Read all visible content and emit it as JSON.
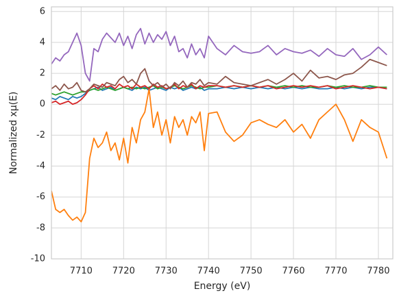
{
  "chart_data": {
    "type": "line",
    "xlabel": "Energy (eV)",
    "ylabel": "Normalized xμ(E)",
    "x": [
      7703,
      7704,
      7705,
      7706,
      7707,
      7708,
      7709,
      7710,
      7711,
      7712,
      7713,
      7714,
      7715,
      7716,
      7717,
      7718,
      7719,
      7720,
      7721,
      7722,
      7723,
      7724,
      7725,
      7726,
      7727,
      7728,
      7729,
      7730,
      7731,
      7732,
      7733,
      7734,
      7735,
      7736,
      7737,
      7738,
      7739,
      7740,
      7742,
      7744,
      7746,
      7748,
      7750,
      7752,
      7754,
      7756,
      7758,
      7760,
      7762,
      7764,
      7766,
      7768,
      7770,
      7772,
      7774,
      7776,
      7778,
      7780,
      7782
    ],
    "series": [
      {
        "color": "#1f77b4",
        "values": [
          0.4,
          0.3,
          0.5,
          0.4,
          0.3,
          0.5,
          0.4,
          0.5,
          0.7,
          0.9,
          1.0,
          1.1,
          0.9,
          1.0,
          1.1,
          0.9,
          1.0,
          1.1,
          1.0,
          0.9,
          1.1,
          1.0,
          1.1,
          0.9,
          1.0,
          1.1,
          1.0,
          0.9,
          1.1,
          1.0,
          1.1,
          0.9,
          1.0,
          1.1,
          1.0,
          1.1,
          0.9,
          1.0,
          1.0,
          1.1,
          1.0,
          1.1,
          1.0,
          1.1,
          1.0,
          1.1,
          1.0,
          1.1,
          1.0,
          1.1,
          1.0,
          1.0,
          1.1,
          1.0,
          1.1,
          1.0,
          1.1,
          1.1,
          1.0
        ]
      },
      {
        "color": "#ff7f0e",
        "values": [
          -5.6,
          -6.8,
          -7,
          -6.8,
          -7.2,
          -7.5,
          -7.3,
          -7.6,
          -7,
          -3.5,
          -2.2,
          -2.8,
          -2.5,
          -1.8,
          -3,
          -2.5,
          -3.6,
          -2.2,
          -3.8,
          -1.5,
          -2.5,
          -1,
          -0.5,
          1.0,
          -1.5,
          -0.5,
          -2,
          -1,
          -2.5,
          -0.8,
          -1.5,
          -1,
          -2,
          -0.8,
          -1.2,
          -0.5,
          -3,
          -0.6,
          -0.5,
          -1.8,
          -2.4,
          -2,
          -1.2,
          -1,
          -1.3,
          -1.5,
          -1,
          -1.8,
          -1.3,
          -2.2,
          -1,
          -0.5,
          0,
          -1,
          -2.4,
          -1,
          -1.5,
          -1.8,
          -3.5
        ]
      },
      {
        "color": "#2ca02c",
        "values": [
          0.7,
          0.6,
          0.7,
          0.8,
          0.7,
          0.6,
          0.7,
          0.8,
          0.8,
          0.9,
          1.0,
          0.9,
          1.0,
          1.1,
          1.0,
          0.9,
          1.0,
          1.1,
          1.0,
          1.1,
          1.0,
          1.1,
          1.0,
          1.1,
          1.2,
          1.0,
          1.1,
          1.0,
          1.1,
          1.2,
          1.1,
          1.0,
          1.1,
          1.2,
          1.1,
          1.0,
          1.1,
          1.1,
          1.2,
          1.1,
          1.2,
          1.1,
          1.2,
          1.1,
          1.2,
          1.1,
          1.2,
          1.1,
          1.2,
          1.1,
          1.1,
          1.2,
          1.1,
          1.2,
          1.1,
          1.1,
          1.2,
          1.1,
          1.1
        ]
      },
      {
        "color": "#d62728",
        "values": [
          0.1,
          0.2,
          0,
          0.1,
          0.2,
          0,
          0.1,
          0.3,
          0.6,
          1.0,
          1.2,
          1.0,
          1.3,
          1.1,
          1.2,
          1.0,
          1.3,
          1.1,
          1.2,
          1.0,
          1.3,
          1.1,
          1.2,
          1.0,
          1.3,
          1.1,
          1.2,
          1.0,
          1.1,
          1.3,
          1.0,
          1.2,
          1.1,
          1.3,
          1.0,
          1.2,
          1.1,
          1.2,
          1.2,
          1.1,
          1.2,
          1.1,
          1.2,
          1.1,
          1.2,
          1.0,
          1.1,
          1.2,
          1.1,
          1.2,
          1.1,
          1.2,
          1.0,
          1.1,
          1.2,
          1.1,
          1.0,
          1.1,
          1.0
        ]
      },
      {
        "color": "#9467bd",
        "values": [
          2.6,
          3.0,
          2.8,
          3.2,
          3.4,
          4.0,
          4.6,
          3.8,
          2.0,
          1.5,
          3.6,
          3.4,
          4.2,
          4.6,
          4.3,
          4.0,
          4.6,
          3.8,
          4.4,
          3.6,
          4.5,
          4.9,
          3.9,
          4.6,
          4.0,
          4.5,
          4.2,
          4.7,
          3.8,
          4.4,
          3.4,
          3.6,
          3.0,
          3.9,
          3.2,
          3.6,
          3.0,
          4.4,
          3.6,
          3.2,
          3.8,
          3.4,
          3.3,
          3.4,
          3.8,
          3.2,
          3.6,
          3.4,
          3.3,
          3.5,
          3.1,
          3.6,
          3.2,
          3.1,
          3.6,
          2.9,
          3.2,
          3.7,
          3.2
        ]
      },
      {
        "color": "#8c564b",
        "values": [
          1.0,
          1.2,
          0.9,
          1.3,
          1.0,
          1.1,
          1.4,
          0.9,
          0.8,
          1.0,
          1.3,
          1.2,
          1.1,
          1.4,
          1.3,
          1.2,
          1.6,
          1.8,
          1.4,
          1.6,
          1.3,
          2.0,
          2.3,
          1.5,
          1.2,
          1.4,
          1.1,
          1.3,
          1.0,
          1.4,
          1.2,
          1.5,
          1.1,
          1.4,
          1.3,
          1.6,
          1.2,
          1.4,
          1.3,
          1.8,
          1.4,
          1.3,
          1.2,
          1.4,
          1.6,
          1.3,
          1.6,
          2.0,
          1.5,
          2.2,
          1.7,
          1.8,
          1.6,
          1.9,
          2.0,
          2.4,
          2.9,
          2.7,
          2.5
        ]
      }
    ],
    "xlim": [
      7703,
      7783.4
    ],
    "ylim": [
      -10,
      6.3
    ],
    "xticks": [
      7710,
      7720,
      7730,
      7740,
      7750,
      7760,
      7770,
      7780
    ],
    "yticks": [
      -10,
      -8,
      -6,
      -4,
      -2,
      0,
      2,
      4,
      6
    ],
    "grid": true
  }
}
